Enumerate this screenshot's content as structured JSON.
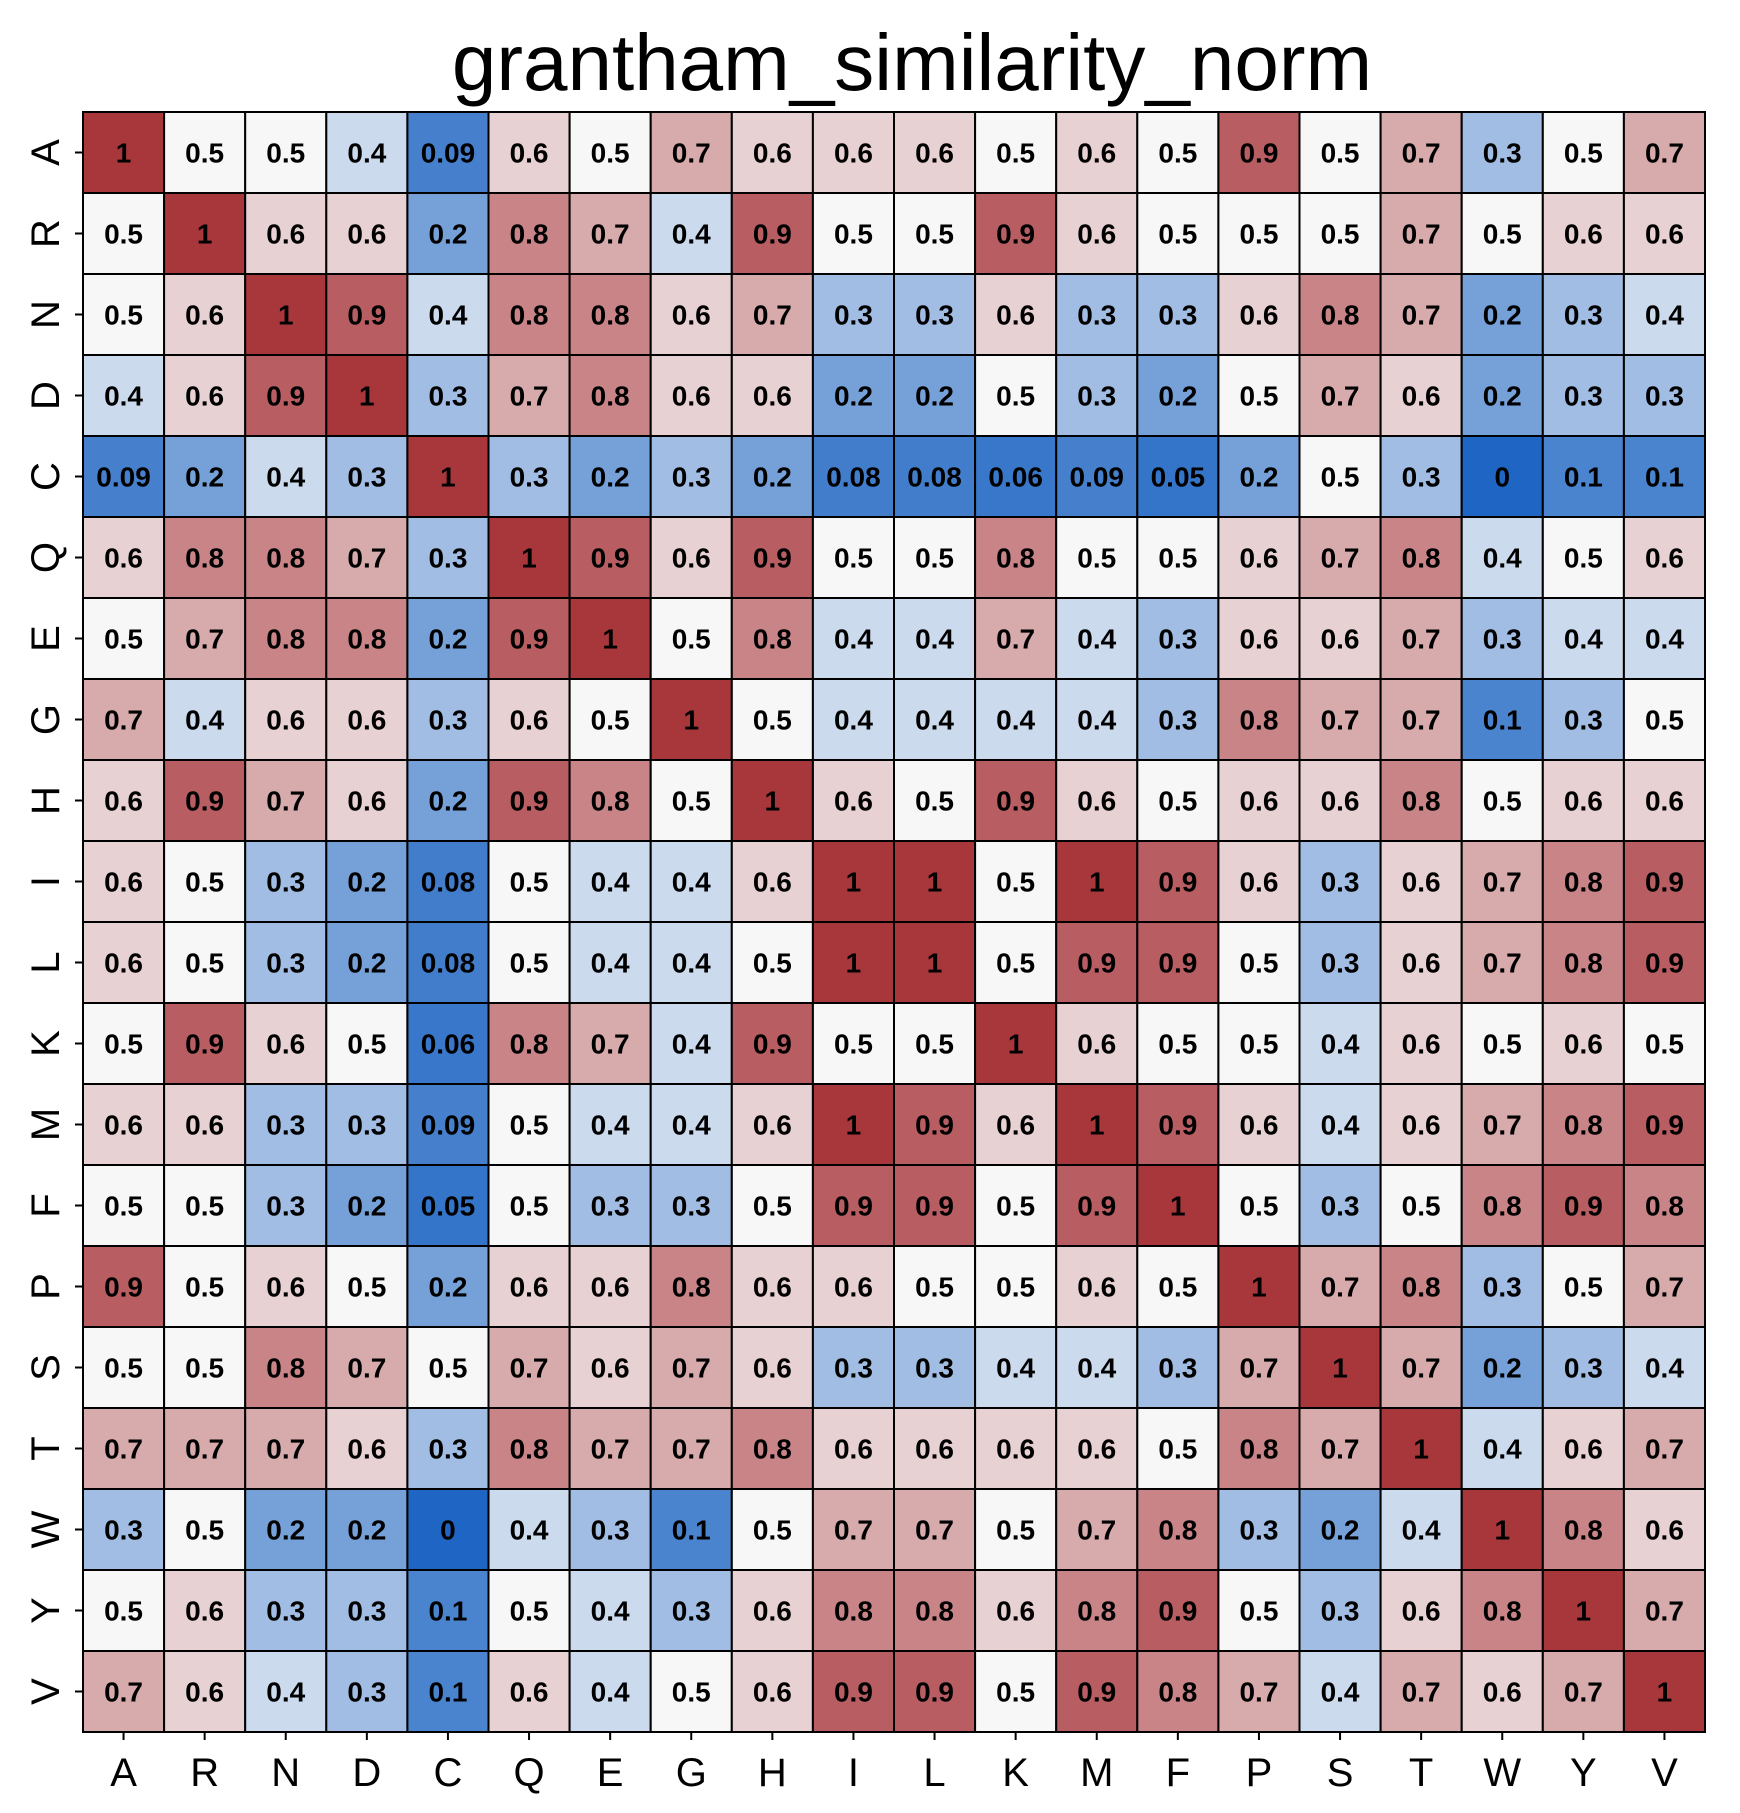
{
  "chart_data": {
    "type": "heatmap",
    "title": "grantham_similarity_norm",
    "xlabel": "",
    "ylabel": "",
    "categories": [
      "A",
      "R",
      "N",
      "D",
      "C",
      "Q",
      "E",
      "G",
      "H",
      "I",
      "L",
      "K",
      "M",
      "F",
      "P",
      "S",
      "T",
      "W",
      "Y",
      "V"
    ],
    "x_labels": [
      "A",
      "R",
      "N",
      "D",
      "C",
      "Q",
      "E",
      "G",
      "H",
      "I",
      "L",
      "K",
      "M",
      "F",
      "P",
      "S",
      "T",
      "W",
      "Y",
      "V"
    ],
    "y_labels": [
      "A",
      "R",
      "N",
      "D",
      "C",
      "Q",
      "E",
      "G",
      "H",
      "I",
      "L",
      "K",
      "M",
      "F",
      "P",
      "S",
      "T",
      "W",
      "Y",
      "V"
    ],
    "values": [
      [
        1,
        0.5,
        0.5,
        0.4,
        0.09,
        0.6,
        0.5,
        0.7,
        0.6,
        0.6,
        0.6,
        0.5,
        0.6,
        0.5,
        0.9,
        0.5,
        0.7,
        0.3,
        0.5,
        0.7
      ],
      [
        0.5,
        1,
        0.6,
        0.6,
        0.2,
        0.8,
        0.7,
        0.4,
        0.9,
        0.5,
        0.5,
        0.9,
        0.6,
        0.5,
        0.5,
        0.5,
        0.7,
        0.5,
        0.6,
        0.6
      ],
      [
        0.5,
        0.6,
        1,
        0.9,
        0.4,
        0.8,
        0.8,
        0.6,
        0.7,
        0.3,
        0.3,
        0.6,
        0.3,
        0.3,
        0.6,
        0.8,
        0.7,
        0.2,
        0.3,
        0.4
      ],
      [
        0.4,
        0.6,
        0.9,
        1,
        0.3,
        0.7,
        0.8,
        0.6,
        0.6,
        0.2,
        0.2,
        0.5,
        0.3,
        0.2,
        0.5,
        0.7,
        0.6,
        0.2,
        0.3,
        0.3
      ],
      [
        0.09,
        0.2,
        0.4,
        0.3,
        1,
        0.3,
        0.2,
        0.3,
        0.2,
        0.08,
        0.08,
        0.06,
        0.09,
        0.05,
        0.2,
        0.5,
        0.3,
        0,
        0.1,
        0.1
      ],
      [
        0.6,
        0.8,
        0.8,
        0.7,
        0.3,
        1,
        0.9,
        0.6,
        0.9,
        0.5,
        0.5,
        0.8,
        0.5,
        0.5,
        0.6,
        0.7,
        0.8,
        0.4,
        0.5,
        0.6
      ],
      [
        0.5,
        0.7,
        0.8,
        0.8,
        0.2,
        0.9,
        1,
        0.5,
        0.8,
        0.4,
        0.4,
        0.7,
        0.4,
        0.3,
        0.6,
        0.6,
        0.7,
        0.3,
        0.4,
        0.4
      ],
      [
        0.7,
        0.4,
        0.6,
        0.6,
        0.3,
        0.6,
        0.5,
        1,
        0.5,
        0.4,
        0.4,
        0.4,
        0.4,
        0.3,
        0.8,
        0.7,
        0.7,
        0.1,
        0.3,
        0.5
      ],
      [
        0.6,
        0.9,
        0.7,
        0.6,
        0.2,
        0.9,
        0.8,
        0.5,
        1,
        0.6,
        0.5,
        0.9,
        0.6,
        0.5,
        0.6,
        0.6,
        0.8,
        0.5,
        0.6,
        0.6
      ],
      [
        0.6,
        0.5,
        0.3,
        0.2,
        0.08,
        0.5,
        0.4,
        0.4,
        0.6,
        1,
        1,
        0.5,
        1,
        0.9,
        0.6,
        0.3,
        0.6,
        0.7,
        0.8,
        0.9
      ],
      [
        0.6,
        0.5,
        0.3,
        0.2,
        0.08,
        0.5,
        0.4,
        0.4,
        0.5,
        1,
        1,
        0.5,
        0.9,
        0.9,
        0.5,
        0.3,
        0.6,
        0.7,
        0.8,
        0.9
      ],
      [
        0.5,
        0.9,
        0.6,
        0.5,
        0.06,
        0.8,
        0.7,
        0.4,
        0.9,
        0.5,
        0.5,
        1,
        0.6,
        0.5,
        0.5,
        0.4,
        0.6,
        0.5,
        0.6,
        0.5
      ],
      [
        0.6,
        0.6,
        0.3,
        0.3,
        0.09,
        0.5,
        0.4,
        0.4,
        0.6,
        1,
        0.9,
        0.6,
        1,
        0.9,
        0.6,
        0.4,
        0.6,
        0.7,
        0.8,
        0.9
      ],
      [
        0.5,
        0.5,
        0.3,
        0.2,
        0.05,
        0.5,
        0.3,
        0.3,
        0.5,
        0.9,
        0.9,
        0.5,
        0.9,
        1,
        0.5,
        0.3,
        0.5,
        0.8,
        0.9,
        0.8
      ],
      [
        0.9,
        0.5,
        0.6,
        0.5,
        0.2,
        0.6,
        0.6,
        0.8,
        0.6,
        0.6,
        0.5,
        0.5,
        0.6,
        0.5,
        1,
        0.7,
        0.8,
        0.3,
        0.5,
        0.7
      ],
      [
        0.5,
        0.5,
        0.8,
        0.7,
        0.5,
        0.7,
        0.6,
        0.7,
        0.6,
        0.3,
        0.3,
        0.4,
        0.4,
        0.3,
        0.7,
        1,
        0.7,
        0.2,
        0.3,
        0.4
      ],
      [
        0.7,
        0.7,
        0.7,
        0.6,
        0.3,
        0.8,
        0.7,
        0.7,
        0.8,
        0.6,
        0.6,
        0.6,
        0.6,
        0.5,
        0.8,
        0.7,
        1,
        0.4,
        0.6,
        0.7
      ],
      [
        0.3,
        0.5,
        0.2,
        0.2,
        0,
        0.4,
        0.3,
        0.1,
        0.5,
        0.7,
        0.7,
        0.5,
        0.7,
        0.8,
        0.3,
        0.2,
        0.4,
        1,
        0.8,
        0.6
      ],
      [
        0.5,
        0.6,
        0.3,
        0.3,
        0.1,
        0.5,
        0.4,
        0.3,
        0.6,
        0.8,
        0.8,
        0.6,
        0.8,
        0.9,
        0.5,
        0.3,
        0.6,
        0.8,
        1,
        0.7
      ],
      [
        0.7,
        0.6,
        0.4,
        0.3,
        0.1,
        0.6,
        0.4,
        0.5,
        0.6,
        0.9,
        0.9,
        0.5,
        0.9,
        0.8,
        0.7,
        0.4,
        0.7,
        0.6,
        0.7,
        1
      ]
    ],
    "value_range": [
      0,
      1
    ],
    "colormap": {
      "low": "#1f66c4",
      "mid": "#f7f7f7",
      "high": "#a8373c",
      "mid_value": 0.5
    },
    "annotations": "cell values printed in each cell",
    "grid": true,
    "legend": "none"
  }
}
